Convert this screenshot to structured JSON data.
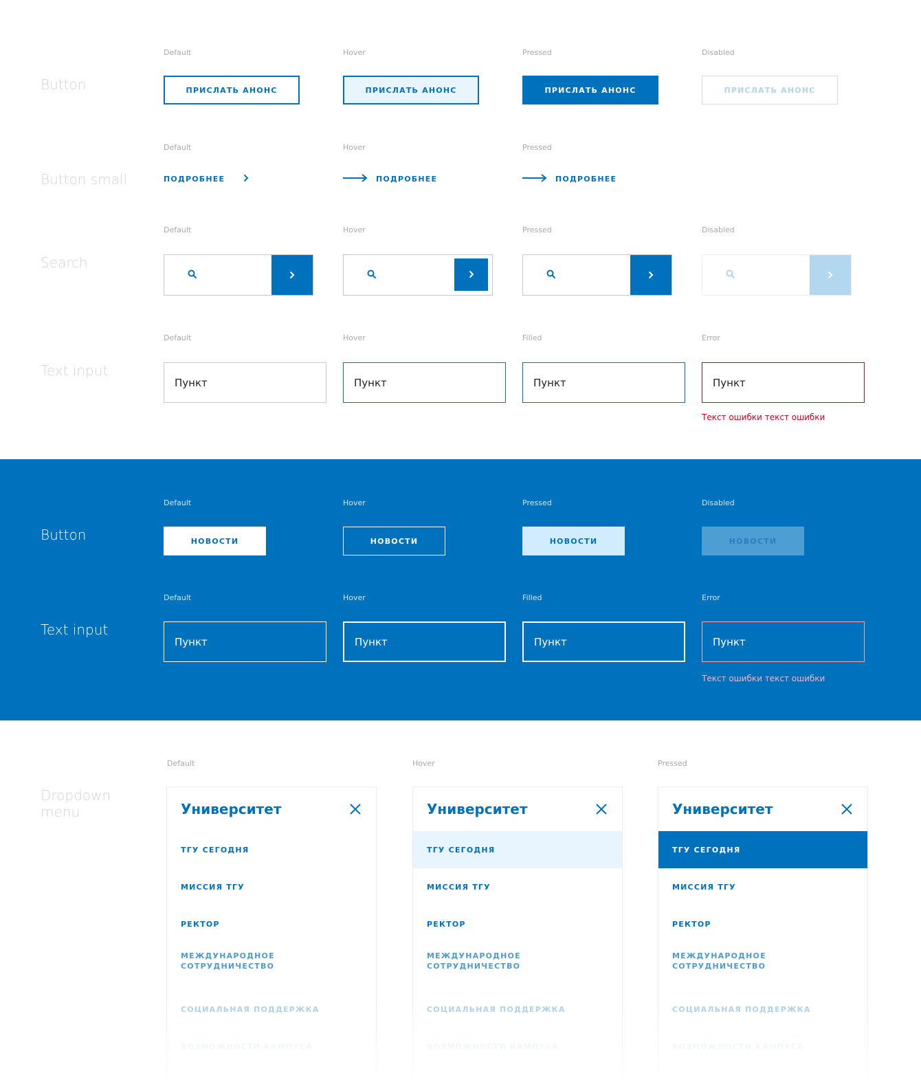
{
  "colors": {
    "accent": "#0071BC",
    "error": "#D0021B",
    "hover_bg": "#E8F4FE",
    "disabled": "#B3D3EC"
  },
  "light": {
    "button": {
      "title": "Button",
      "states": [
        "Default",
        "Hover",
        "Pressed",
        "Disabled"
      ],
      "label": "ПРИСЛАТЬ АНОНС"
    },
    "button_small": {
      "title": "Button small",
      "states": [
        "Default",
        "Hover",
        "Pressed"
      ],
      "label": "ПОДРОБНЕЕ"
    },
    "search": {
      "title": "Search",
      "states": [
        "Default",
        "Hover",
        "Pressed",
        "Disabled"
      ]
    },
    "text_input": {
      "title": "Text input",
      "states": [
        "Default",
        "Hover",
        "Filled",
        "Error"
      ],
      "value": "Пункт",
      "error_text": "Текст ошибки текст ошибки"
    }
  },
  "dark": {
    "button": {
      "title": "Button",
      "states": [
        "Default",
        "Hover",
        "Pressed",
        "Disabled"
      ],
      "label": "НОВОСТИ"
    },
    "text_input": {
      "title": "Text input",
      "states": [
        "Default",
        "Hover",
        "Filled",
        "Error"
      ],
      "value": "Пункт",
      "error_text": "Текст ошибки текст ошибки"
    }
  },
  "dropdown": {
    "title_line1": "Dropdown",
    "title_line2": "menu",
    "states": [
      "Default",
      "Hover",
      "Pressed"
    ],
    "heading": "Университет",
    "items": [
      "ТГУ СЕГОДНЯ",
      "МИССИЯ ТГУ",
      "РЕКТОР",
      "МЕЖДУНАРОДНОЕ СОТРУДНИЧЕСТВО",
      "СОЦИАЛЬНАЯ ПОДДЕРЖКА",
      "ВОЗМОЖНОСТИ КАМПУСА"
    ]
  }
}
